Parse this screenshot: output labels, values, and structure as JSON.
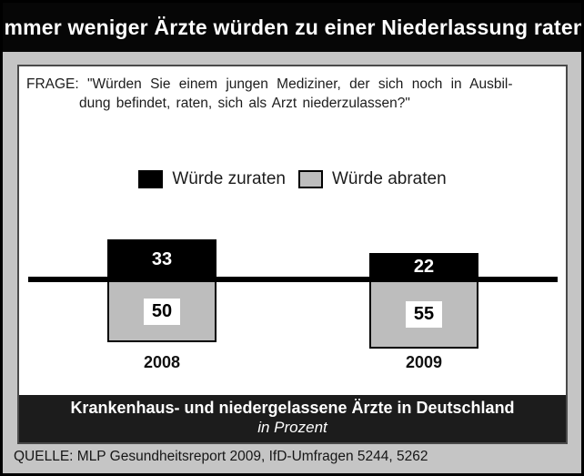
{
  "title": "Immer weniger Ärzte würden zu einer Niederlassung raten",
  "question": {
    "line1": "FRAGE: \"Würden Sie einem jungen Mediziner, der sich noch in Ausbil-",
    "line2": "dung befindet, raten, sich als Arzt niederzulassen?\""
  },
  "chart_data": {
    "type": "bar",
    "subtype": "diverging-from-zero-line",
    "categories": [
      "2008",
      "2009"
    ],
    "series": [
      {
        "name": "Würde zuraten",
        "values": [
          33,
          22
        ],
        "color": "#000000",
        "direction": "above-line"
      },
      {
        "name": "Würde abraten",
        "values": [
          50,
          55
        ],
        "color": "#bdbdbd",
        "direction": "below-line"
      }
    ],
    "unit": "Prozent",
    "legend_position": "top-center",
    "grid": false,
    "pixels_per_unit": 1.36
  },
  "banner": {
    "line1": "Krankenhaus- und niedergelassene Ärzte in Deutschland",
    "line2": "in Prozent"
  },
  "source": "QUELLE: MLP Gesundheitsreport 2009, IfD-Umfragen 5244, 5262",
  "colors": {
    "background": "#c5c5c5",
    "title_band": "#060606",
    "panel": "#ffffff",
    "bar_above": "#000000",
    "bar_below": "#bdbdbd",
    "banner": "#1c1c1c",
    "zero_line": "#000000"
  }
}
